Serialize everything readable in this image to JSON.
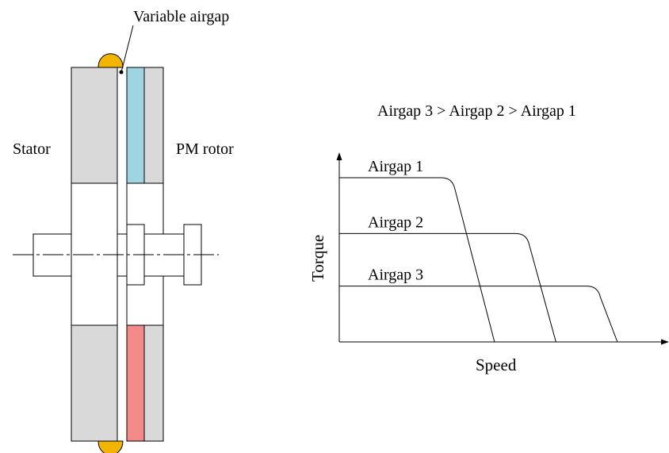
{
  "machine": {
    "variable_airgap_label": "Variable airgap",
    "stator_label": "Stator",
    "rotor_label": "PM rotor"
  },
  "colors": {
    "core_gray": "#d9d9d9",
    "magnet_top": "#9fd5e3",
    "magnet_bottom": "#f48b8b",
    "winding_gold": "#f2b400"
  },
  "chart": {
    "caption": "Airgap 3 > Airgap 2 > Airgap 1",
    "xlabel": "Speed",
    "ylabel": "Torque"
  },
  "chart_data": {
    "type": "line",
    "title": "Airgap 3 > Airgap 2 > Airgap 1",
    "xlabel": "Speed",
    "ylabel": "Torque",
    "series": [
      {
        "name": "Airgap 1",
        "torque_level": 1.0,
        "knee_speed": 0.35,
        "zero_speed": 0.48
      },
      {
        "name": "Airgap 2",
        "torque_level": 0.66,
        "knee_speed": 0.58,
        "zero_speed": 0.67
      },
      {
        "name": "Airgap 3",
        "torque_level": 0.34,
        "knee_speed": 0.8,
        "zero_speed": 0.86
      }
    ]
  }
}
